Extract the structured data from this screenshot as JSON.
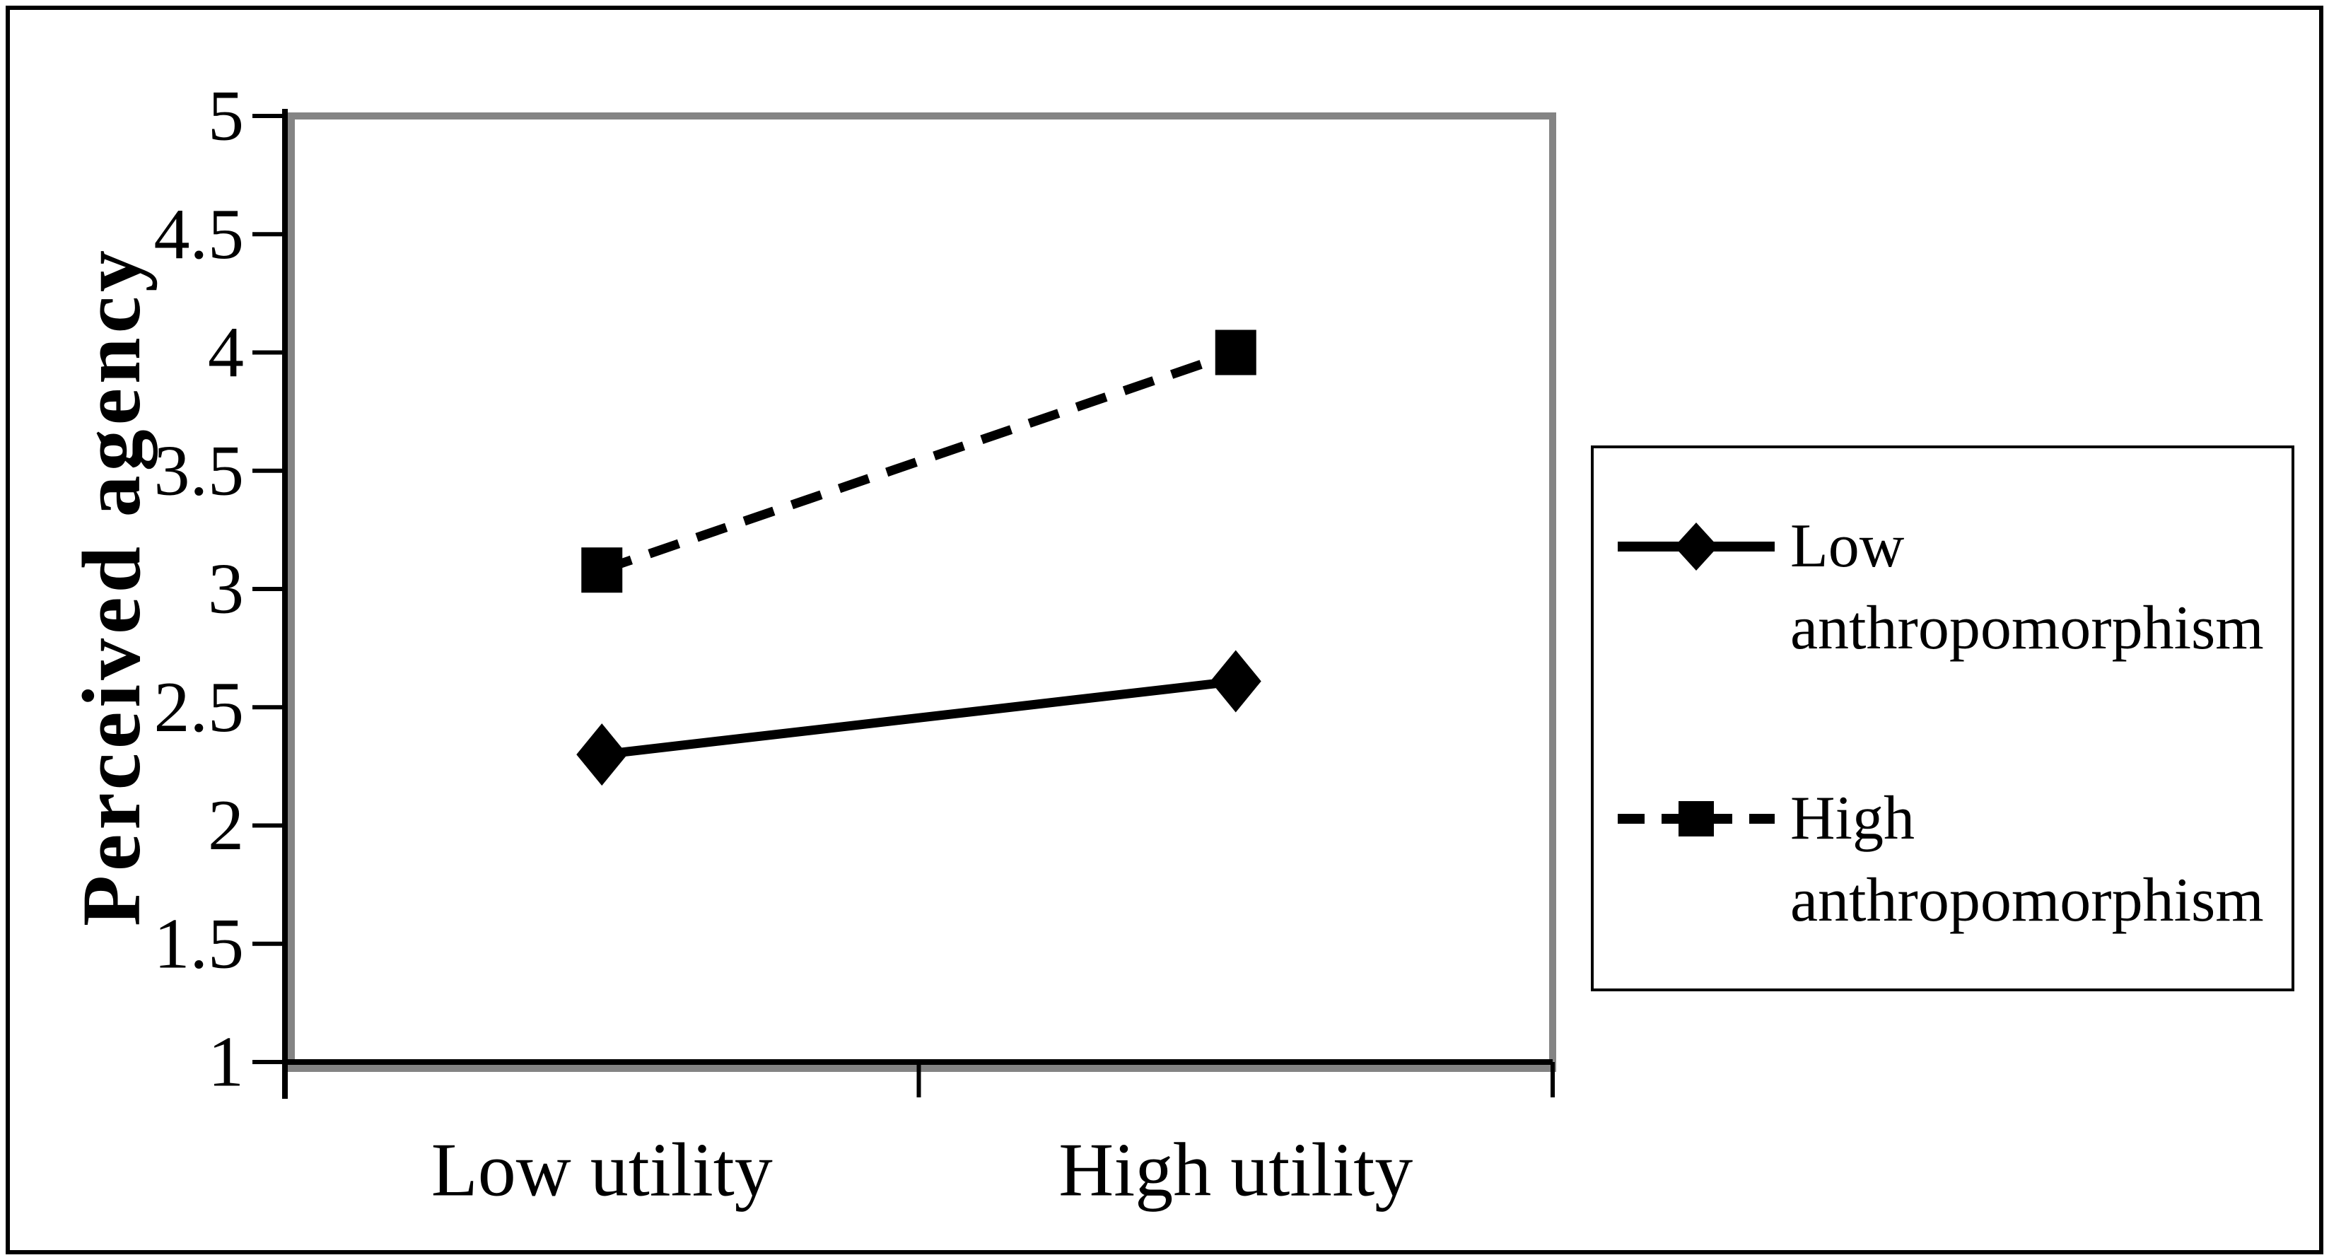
{
  "chart_data": {
    "type": "line",
    "title": "",
    "ylabel": "Perceived agency",
    "xlabel": "",
    "categories": [
      "Low utility",
      "High utility"
    ],
    "series": [
      {
        "name": "Low anthropomorphism",
        "marker": "diamond",
        "line_style": "solid",
        "values": [
          2.3,
          2.61
        ]
      },
      {
        "name": "High anthropomorphism",
        "marker": "square",
        "line_style": "dashed",
        "values": [
          3.08,
          4.0
        ]
      }
    ],
    "ylim": [
      1,
      5
    ],
    "ytick_step": 0.5,
    "yticks": [
      "5",
      "4.5",
      "4",
      "3.5",
      "3",
      "2.5",
      "2",
      "1.5",
      "1"
    ],
    "grid": false,
    "legend_position": "right-outside",
    "colors": {
      "series": "#000000",
      "axis": "#000000",
      "text": "#000000",
      "plot_border": "#848484",
      "background": "#ffffff",
      "legend_border": "#000000",
      "figure_border": "#000000"
    }
  }
}
